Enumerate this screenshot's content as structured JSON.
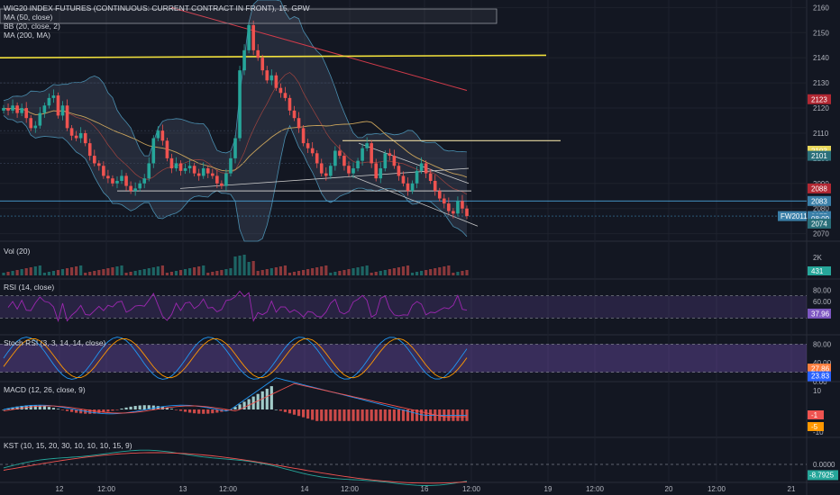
{
  "main": {
    "title": "WIG20 INDEX FUTURES (CONTINUOUS: CURRENT CONTRACT IN FRONT), 15, GPW",
    "indicators": [
      "MA (50, close)",
      "BB (20, close, 2)",
      "MA (200, MA)"
    ],
    "ticks": [
      "2160",
      "2150",
      "2140",
      "2130",
      "2120",
      "2110",
      "2100",
      "2090",
      "2080",
      "2070"
    ],
    "badges": [
      {
        "text": "2123",
        "value": 2123.5,
        "color": "#b22833"
      },
      {
        "text": "2103",
        "value": 2103,
        "color": "#e8d75a"
      },
      {
        "text": "2101",
        "value": 2101,
        "color": "#2a6f7a"
      },
      {
        "text": "2088",
        "value": 2088,
        "color": "#b22833"
      },
      {
        "text": "2083",
        "value": 2083,
        "color": "#3a7fa8"
      },
      {
        "text": "2077",
        "value": 2077,
        "color": "#3a7fa8"
      },
      {
        "text": "08:09",
        "value": 2076,
        "color": "#3a7fa8"
      },
      {
        "text": "2074",
        "value": 2074,
        "color": "#2a6f7a"
      }
    ],
    "contract_label": "FW2011"
  },
  "x_labels": [
    "12",
    "12:00",
    "13",
    "12:00",
    "14",
    "12:00",
    "16",
    "12:00",
    "19",
    "12:00",
    "20",
    "12:00",
    "21"
  ],
  "panes": {
    "vol": {
      "title": "Vol (20)",
      "ticks": [
        "2K"
      ],
      "badge": "431"
    },
    "rsi": {
      "title": "RSI (14, close)",
      "ticks": [
        "80.00",
        "60.00",
        "40.00"
      ],
      "badge": "37.96"
    },
    "stoch": {
      "title": "Stoch RSI (3, 3, 14, 14, close)",
      "ticks": [
        "80.00",
        "40.00",
        "0.00"
      ],
      "badges": [
        "27.86",
        "23.83"
      ]
    },
    "macd": {
      "title": "MACD (12, 26, close, 9)",
      "ticks": [
        "10",
        "-10"
      ],
      "badges": [
        "-1",
        "-5"
      ]
    },
    "kst": {
      "title": "KST (10, 15, 20, 30, 10, 10, 10, 15, 9)",
      "ticks": [
        "0.0000"
      ],
      "badge": "-8.7925"
    }
  },
  "chart_data": {
    "type": "candlestick",
    "title": "WIG20 INDEX FUTURES (CONTINUOUS: CURRENT CONTRACT IN FRONT), 15, GPW",
    "interval": "15",
    "ylim": [
      2067,
      2163
    ],
    "y_ticks": [
      2070,
      2080,
      2090,
      2100,
      2110,
      2120,
      2130,
      2140,
      2150,
      2160
    ],
    "x_ticks": [
      "12",
      "12:00",
      "13",
      "12:00",
      "14",
      "12:00",
      "16",
      "12:00",
      "19",
      "12:00",
      "20",
      "12:00",
      "21"
    ],
    "close_path": [
      2120,
      2119,
      2121,
      2118,
      2120,
      2116,
      2112,
      2113,
      2118,
      2121,
      2124,
      2125,
      2117,
      2121,
      2112,
      2109,
      2108,
      2110,
      2106,
      2101,
      2098,
      2097,
      2093,
      2092,
      2090,
      2091,
      2093,
      2089,
      2087,
      2088,
      2090,
      2092,
      2098,
      2108,
      2111,
      2107,
      2100,
      2096,
      2098,
      2095,
      2096,
      2097,
      2094,
      2093,
      2096,
      2094,
      2093,
      2090,
      2089,
      2094,
      2100,
      2108,
      2135,
      2143,
      2153,
      2143,
      2140,
      2135,
      2131,
      2133,
      2128,
      2126,
      2124,
      2119,
      2116,
      2112,
      2106,
      2104,
      2102,
      2098,
      2094,
      2093,
      2097,
      2103,
      2101,
      2097,
      2094,
      2096,
      2099,
      2104,
      2106,
      2098,
      2092,
      2096,
      2102,
      2101,
      2097,
      2093,
      2090,
      2087,
      2090,
      2095,
      2098,
      2094,
      2091,
      2087,
      2084,
      2082,
      2079,
      2078,
      2083,
      2080,
      2077
    ],
    "levels": [
      2140,
      2107,
      2087
    ],
    "current_price": 2077
  }
}
